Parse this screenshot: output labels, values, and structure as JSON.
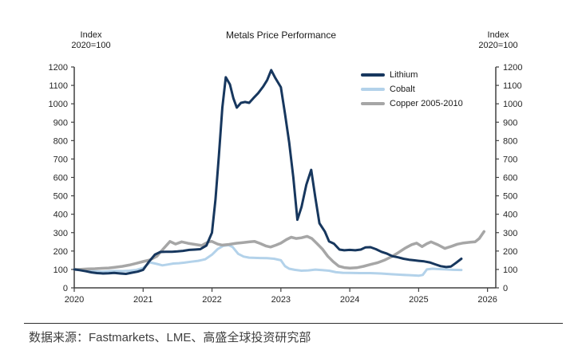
{
  "chart": {
    "title": "Metals Price Performance",
    "left_axis_header": {
      "line1": "Index",
      "line2": "2020=100"
    },
    "right_axis_header": {
      "line1": "Index",
      "line2": "2020=100"
    }
  },
  "legend": [
    {
      "label": "Lithium",
      "color": "#17375e"
    },
    {
      "label": "Cobalt",
      "color": "#b3d2ea"
    },
    {
      "label": "Copper 2005-2010",
      "color": "#a6a6a6"
    }
  ],
  "footer": {
    "source_text": "数据来源：Fastmarkets、LME、高盛全球投资研究部"
  },
  "chart_data": {
    "type": "line",
    "title": "Metals Price Performance",
    "xlabel": "",
    "ylabel": "Index, 2020=100",
    "grid": false,
    "legend_position": "top-right-inside",
    "style": {
      "axis_color": "#404040",
      "tick_text_color": "#262626"
    },
    "x_axis": {
      "range": [
        2020,
        2026.12
      ],
      "ticks": [
        2020,
        2021,
        2022,
        2023,
        2024,
        2025,
        2026
      ]
    },
    "y_axis": {
      "range": [
        0,
        1200
      ],
      "ticks": [
        0,
        100,
        200,
        300,
        400,
        500,
        600,
        700,
        800,
        900,
        1000,
        1100,
        1200
      ],
      "mirrored_right": true
    },
    "series": [
      {
        "name": "Lithium",
        "color": "#17375e",
        "width": 3,
        "points": [
          [
            2020,
            100
          ],
          [
            2020.08,
            96
          ],
          [
            2020.17,
            90
          ],
          [
            2020.25,
            84
          ],
          [
            2020.33,
            80
          ],
          [
            2020.42,
            78
          ],
          [
            2020.5,
            79
          ],
          [
            2020.58,
            81
          ],
          [
            2020.67,
            78
          ],
          [
            2020.75,
            76
          ],
          [
            2020.83,
            82
          ],
          [
            2020.92,
            88
          ],
          [
            2021,
            98
          ],
          [
            2021.08,
            140
          ],
          [
            2021.17,
            180
          ],
          [
            2021.25,
            195
          ],
          [
            2021.33,
            196
          ],
          [
            2021.42,
            196
          ],
          [
            2021.5,
            198
          ],
          [
            2021.58,
            201
          ],
          [
            2021.67,
            206
          ],
          [
            2021.75,
            208
          ],
          [
            2021.83,
            210
          ],
          [
            2021.92,
            230
          ],
          [
            2022,
            300
          ],
          [
            2022.05,
            480
          ],
          [
            2022.1,
            720
          ],
          [
            2022.15,
            980
          ],
          [
            2022.2,
            1144
          ],
          [
            2022.26,
            1105
          ],
          [
            2022.31,
            1030
          ],
          [
            2022.36,
            979
          ],
          [
            2022.42,
            1005
          ],
          [
            2022.48,
            1010
          ],
          [
            2022.54,
            1005
          ],
          [
            2022.6,
            1030
          ],
          [
            2022.67,
            1058
          ],
          [
            2022.74,
            1092
          ],
          [
            2022.8,
            1128
          ],
          [
            2022.86,
            1183
          ],
          [
            2022.92,
            1140
          ],
          [
            2023,
            1090
          ],
          [
            2023.06,
            945
          ],
          [
            2023.12,
            790
          ],
          [
            2023.18,
            600
          ],
          [
            2023.24,
            370
          ],
          [
            2023.3,
            440
          ],
          [
            2023.37,
            560
          ],
          [
            2023.44,
            641
          ],
          [
            2023.5,
            490
          ],
          [
            2023.56,
            351
          ],
          [
            2023.64,
            305
          ],
          [
            2023.7,
            252
          ],
          [
            2023.77,
            240
          ],
          [
            2023.85,
            208
          ],
          [
            2023.92,
            204
          ],
          [
            2024,
            206
          ],
          [
            2024.08,
            204
          ],
          [
            2024.16,
            208
          ],
          [
            2024.23,
            220
          ],
          [
            2024.3,
            221
          ],
          [
            2024.38,
            210
          ],
          [
            2024.46,
            196
          ],
          [
            2024.54,
            186
          ],
          [
            2024.62,
            172
          ],
          [
            2024.7,
            166
          ],
          [
            2024.78,
            158
          ],
          [
            2024.86,
            153
          ],
          [
            2024.93,
            150
          ],
          [
            2025,
            147
          ],
          [
            2025.08,
            144
          ],
          [
            2025.16,
            138
          ],
          [
            2025.24,
            128
          ],
          [
            2025.32,
            118
          ],
          [
            2025.4,
            113
          ],
          [
            2025.47,
            116
          ],
          [
            2025.54,
            135
          ],
          [
            2025.62,
            158
          ]
        ]
      },
      {
        "name": "Cobalt",
        "color": "#b3d2ea",
        "width": 3,
        "points": [
          [
            2020,
            100
          ],
          [
            2020.1,
            98
          ],
          [
            2020.2,
            94
          ],
          [
            2020.3,
            90
          ],
          [
            2020.4,
            88
          ],
          [
            2020.5,
            90
          ],
          [
            2020.6,
            92
          ],
          [
            2020.7,
            91
          ],
          [
            2020.8,
            93
          ],
          [
            2020.9,
            97
          ],
          [
            2021,
            108
          ],
          [
            2021.1,
            138
          ],
          [
            2021.2,
            130
          ],
          [
            2021.28,
            122
          ],
          [
            2021.36,
            127
          ],
          [
            2021.44,
            132
          ],
          [
            2021.52,
            134
          ],
          [
            2021.6,
            137
          ],
          [
            2021.7,
            142
          ],
          [
            2021.8,
            147
          ],
          [
            2021.9,
            155
          ],
          [
            2022,
            180
          ],
          [
            2022.08,
            210
          ],
          [
            2022.16,
            228
          ],
          [
            2022.24,
            232
          ],
          [
            2022.3,
            222
          ],
          [
            2022.38,
            185
          ],
          [
            2022.46,
            170
          ],
          [
            2022.54,
            164
          ],
          [
            2022.62,
            163
          ],
          [
            2022.7,
            162
          ],
          [
            2022.8,
            161
          ],
          [
            2022.9,
            158
          ],
          [
            2023,
            150
          ],
          [
            2023.06,
            118
          ],
          [
            2023.12,
            104
          ],
          [
            2023.2,
            98
          ],
          [
            2023.3,
            93
          ],
          [
            2023.4,
            95
          ],
          [
            2023.5,
            99
          ],
          [
            2023.6,
            96
          ],
          [
            2023.7,
            93
          ],
          [
            2023.8,
            85
          ],
          [
            2023.9,
            82
          ],
          [
            2024,
            81
          ],
          [
            2024.15,
            80
          ],
          [
            2024.3,
            80
          ],
          [
            2024.45,
            78
          ],
          [
            2024.6,
            74
          ],
          [
            2024.75,
            71
          ],
          [
            2024.9,
            68
          ],
          [
            2025,
            66
          ],
          [
            2025.06,
            70
          ],
          [
            2025.12,
            100
          ],
          [
            2025.2,
            104
          ],
          [
            2025.3,
            102
          ],
          [
            2025.4,
            100
          ],
          [
            2025.5,
            98
          ],
          [
            2025.62,
            97
          ]
        ]
      },
      {
        "name": "Copper 2005-2010",
        "color": "#a6a6a6",
        "width": 3.5,
        "points": [
          [
            2020,
            100
          ],
          [
            2020.1,
            101
          ],
          [
            2020.2,
            103
          ],
          [
            2020.3,
            104
          ],
          [
            2020.4,
            106
          ],
          [
            2020.5,
            108
          ],
          [
            2020.6,
            112
          ],
          [
            2020.7,
            117
          ],
          [
            2020.8,
            124
          ],
          [
            2020.9,
            133
          ],
          [
            2021,
            143
          ],
          [
            2021.1,
            152
          ],
          [
            2021.2,
            172
          ],
          [
            2021.3,
            215
          ],
          [
            2021.39,
            252
          ],
          [
            2021.47,
            238
          ],
          [
            2021.56,
            250
          ],
          [
            2021.65,
            242
          ],
          [
            2021.75,
            236
          ],
          [
            2021.85,
            230
          ],
          [
            2021.95,
            250
          ],
          [
            2022,
            252
          ],
          [
            2022.08,
            238
          ],
          [
            2022.15,
            232
          ],
          [
            2022.25,
            236
          ],
          [
            2022.35,
            242
          ],
          [
            2022.45,
            246
          ],
          [
            2022.55,
            250
          ],
          [
            2022.62,
            252
          ],
          [
            2022.7,
            241
          ],
          [
            2022.78,
            228
          ],
          [
            2022.85,
            222
          ],
          [
            2022.93,
            232
          ],
          [
            2023,
            243
          ],
          [
            2023.08,
            262
          ],
          [
            2023.15,
            275
          ],
          [
            2023.22,
            268
          ],
          [
            2023.3,
            272
          ],
          [
            2023.38,
            280
          ],
          [
            2023.45,
            268
          ],
          [
            2023.52,
            242
          ],
          [
            2023.6,
            212
          ],
          [
            2023.68,
            172
          ],
          [
            2023.76,
            142
          ],
          [
            2023.84,
            118
          ],
          [
            2023.92,
            110
          ],
          [
            2024,
            107
          ],
          [
            2024.1,
            109
          ],
          [
            2024.2,
            117
          ],
          [
            2024.3,
            127
          ],
          [
            2024.4,
            136
          ],
          [
            2024.5,
            150
          ],
          [
            2024.6,
            168
          ],
          [
            2024.7,
            190
          ],
          [
            2024.8,
            215
          ],
          [
            2024.9,
            235
          ],
          [
            2024.97,
            243
          ],
          [
            2025.05,
            224
          ],
          [
            2025.12,
            240
          ],
          [
            2025.18,
            250
          ],
          [
            2025.28,
            234
          ],
          [
            2025.38,
            214
          ],
          [
            2025.48,
            226
          ],
          [
            2025.56,
            237
          ],
          [
            2025.65,
            244
          ],
          [
            2025.75,
            248
          ],
          [
            2025.82,
            250
          ],
          [
            2025.88,
            268
          ],
          [
            2025.95,
            306
          ]
        ]
      }
    ]
  }
}
